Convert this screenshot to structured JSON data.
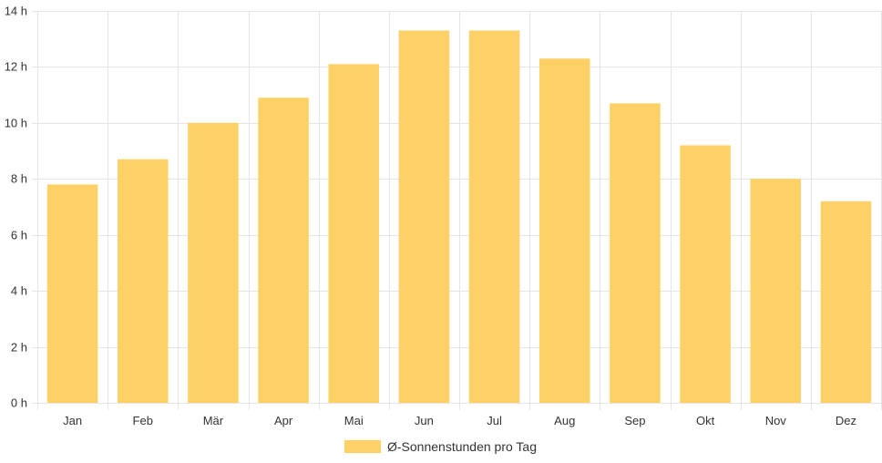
{
  "chart_data": {
    "type": "bar",
    "categories": [
      "Jan",
      "Feb",
      "Mär",
      "Apr",
      "Mai",
      "Jun",
      "Jul",
      "Aug",
      "Sep",
      "Okt",
      "Nov",
      "Dez"
    ],
    "series": [
      {
        "name": "Ø-Sonnenstunden pro Tag",
        "values": [
          7.8,
          8.7,
          10.0,
          10.9,
          12.1,
          13.3,
          13.3,
          12.3,
          10.7,
          9.2,
          8.0,
          7.2
        ]
      }
    ],
    "y_ticks": [
      "0 h",
      "2 h",
      "4 h",
      "6 h",
      "8 h",
      "10 h",
      "12 h",
      "14 h"
    ],
    "ylim": [
      0,
      14
    ],
    "grid": true,
    "legend_position": "bottom",
    "colors": {
      "bar": "#fdd166",
      "grid": "#e5e5e5",
      "text": "#333333"
    }
  }
}
